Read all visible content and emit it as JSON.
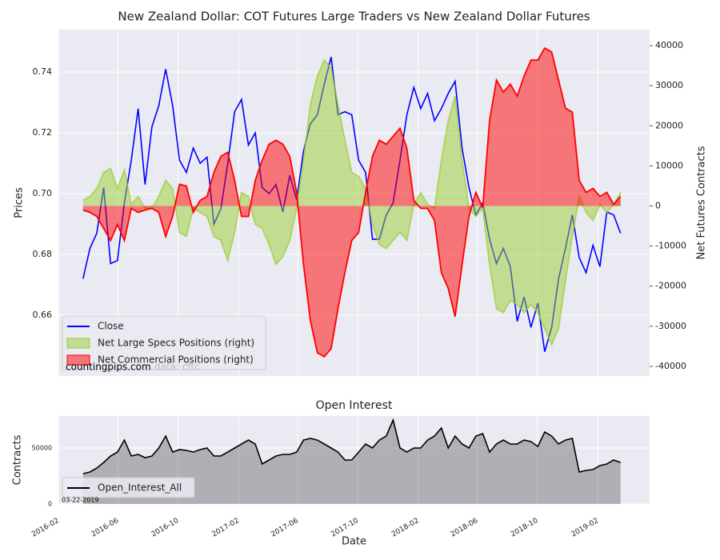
{
  "chart_data": [
    {
      "type": "line",
      "title": "New Zealand Dollar: COT Futures Large Traders vs New Zealand Dollar Futures",
      "ylabel": "Prices",
      "y2label": "Net Futures Contracts",
      "watermark": "countingpips.com",
      "source_note": "data: cftc",
      "legend": "lower left",
      "grid": true,
      "x": [
        "2016-03-22",
        "2016-04-05",
        "2016-04-19",
        "2016-05-03",
        "2016-05-17",
        "2016-05-31",
        "2016-06-14",
        "2016-06-28",
        "2016-07-12",
        "2016-07-26",
        "2016-08-09",
        "2016-08-23",
        "2016-09-06",
        "2016-09-20",
        "2016-10-04",
        "2016-10-18",
        "2016-11-01",
        "2016-11-15",
        "2016-11-29",
        "2016-12-13",
        "2016-12-27",
        "2017-01-10",
        "2017-01-24",
        "2017-02-07",
        "2017-02-21",
        "2017-03-07",
        "2017-03-21",
        "2017-04-04",
        "2017-04-18",
        "2017-05-02",
        "2017-05-16",
        "2017-05-30",
        "2017-06-13",
        "2017-06-27",
        "2017-07-11",
        "2017-07-25",
        "2017-08-08",
        "2017-08-22",
        "2017-09-05",
        "2017-09-19",
        "2017-10-03",
        "2017-10-17",
        "2017-10-31",
        "2017-11-14",
        "2017-11-28",
        "2017-12-12",
        "2017-12-26",
        "2018-01-09",
        "2018-01-23",
        "2018-02-06",
        "2018-02-20",
        "2018-03-06",
        "2018-03-20",
        "2018-04-03",
        "2018-04-17",
        "2018-05-01",
        "2018-05-15",
        "2018-05-29",
        "2018-06-12",
        "2018-06-26",
        "2018-07-10",
        "2018-07-24",
        "2018-08-07",
        "2018-08-21",
        "2018-09-04",
        "2018-09-18",
        "2018-10-02",
        "2018-10-16",
        "2018-10-30",
        "2018-11-13",
        "2018-11-27",
        "2018-12-11",
        "2018-12-25",
        "2019-01-08",
        "2019-01-22",
        "2019-02-05",
        "2019-02-19",
        "2019-03-05",
        "2019-03-19"
      ],
      "xlim": [
        "2016-02-01",
        "2019-05-17"
      ],
      "xticks": [
        "2016-02-01",
        "2016-06-01",
        "2016-10-01",
        "2017-02-01",
        "2017-06-01",
        "2017-10-01",
        "2018-02-01",
        "2018-06-01",
        "2018-10-01",
        "2019-02-01"
      ],
      "ylim": [
        0.64,
        0.754
      ],
      "yticks": [
        0.66,
        0.68,
        {
          "value": 0.7,
          "label": "0.70"
        },
        0.72,
        0.74
      ],
      "y2lim": [
        -42400,
        44000
      ],
      "y2ticks": [
        -40000,
        -30000,
        -20000,
        -10000,
        0,
        10000,
        20000,
        30000,
        40000
      ],
      "series": [
        {
          "name": "Close",
          "color": "#0000ff",
          "kind": "line",
          "values": [
            0.672,
            0.682,
            0.687,
            0.702,
            0.677,
            0.678,
            0.697,
            0.711,
            0.728,
            0.703,
            0.722,
            0.729,
            0.741,
            0.729,
            0.711,
            0.707,
            0.715,
            0.71,
            0.712,
            0.69,
            0.695,
            0.71,
            0.727,
            0.731,
            0.716,
            0.72,
            0.702,
            0.7,
            0.703,
            0.694,
            0.706,
            0.698,
            0.714,
            0.723,
            0.726,
            0.736,
            0.745,
            0.726,
            0.727,
            0.726,
            0.711,
            0.707,
            0.685,
            0.685,
            0.693,
            0.697,
            0.711,
            0.726,
            0.735,
            0.728,
            0.733,
            0.724,
            0.728,
            0.733,
            0.737,
            0.715,
            0.702,
            0.693,
            0.697,
            0.685,
            0.677,
            0.682,
            0.676,
            0.658,
            0.666,
            0.656,
            0.664,
            0.648,
            0.656,
            0.672,
            0.682,
            0.693,
            0.679,
            0.674,
            0.683,
            0.676,
            0.694,
            0.693,
            0.687
          ]
        },
        {
          "name": "Net Large Specs Positions (right)",
          "color": "#9acd32",
          "kind": "area",
          "axis": "y2",
          "values": [
            1400,
            2400,
            4400,
            8400,
            9400,
            4400,
            9000,
            400,
            2400,
            -600,
            -600,
            2400,
            6400,
            4400,
            -6600,
            -7600,
            -600,
            -1600,
            -2600,
            -7600,
            -8600,
            -13600,
            -6600,
            3400,
            2400,
            -4600,
            -5600,
            -9600,
            -14600,
            -12600,
            -8600,
            -600,
            11400,
            25400,
            32400,
            36400,
            34400,
            25400,
            16400,
            8400,
            7400,
            4400,
            -4600,
            -9600,
            -10600,
            -8600,
            -6600,
            -8600,
            400,
            3400,
            400,
            -600,
            11400,
            21400,
            27400,
            11400,
            -600,
            -2600,
            -600,
            -14600,
            -25600,
            -26600,
            -23600,
            -24600,
            -26600,
            -24600,
            -26600,
            -30600,
            -34600,
            -30600,
            -18600,
            -7600,
            2400,
            -1600,
            -3600,
            400,
            -1600,
            400,
            3400
          ]
        },
        {
          "name": "Net Commercial Positions (right)",
          "color": "#ff0000",
          "kind": "area",
          "axis": "y2",
          "values": [
            -1000,
            -1600,
            -2600,
            -5600,
            -8600,
            -4600,
            -8600,
            -600,
            -1600,
            -1000,
            -600,
            -1600,
            -7600,
            -2600,
            5400,
            5000,
            -1600,
            1400,
            2400,
            8400,
            12400,
            13400,
            6400,
            -2600,
            -2600,
            6400,
            11400,
            15400,
            16400,
            15400,
            12400,
            3400,
            -14600,
            -28600,
            -36600,
            -37600,
            -35600,
            -25600,
            -16600,
            -8600,
            -6600,
            3400,
            12400,
            16400,
            15400,
            17400,
            19400,
            14400,
            1400,
            -600,
            -600,
            -3600,
            -16600,
            -20600,
            -27600,
            -14600,
            -2600,
            3400,
            -400,
            21400,
            31400,
            28400,
            30400,
            27400,
            32400,
            36400,
            36400,
            39400,
            38400,
            31400,
            24400,
            23400,
            6400,
            3400,
            4400,
            2400,
            3400,
            400,
            2400
          ]
        }
      ]
    },
    {
      "type": "area",
      "title": "Open Interest",
      "ylabel": "Contracts",
      "xlabel": "Date",
      "date_note": "03-22-2019",
      "legend": "lower left",
      "grid": true,
      "x": [
        "2016-03-22",
        "2016-04-05",
        "2016-04-19",
        "2016-05-03",
        "2016-05-17",
        "2016-05-31",
        "2016-06-14",
        "2016-06-28",
        "2016-07-12",
        "2016-07-26",
        "2016-08-09",
        "2016-08-23",
        "2016-09-06",
        "2016-09-20",
        "2016-10-04",
        "2016-10-18",
        "2016-11-01",
        "2016-11-15",
        "2016-11-29",
        "2016-12-13",
        "2016-12-27",
        "2017-01-10",
        "2017-01-24",
        "2017-02-07",
        "2017-02-21",
        "2017-03-07",
        "2017-03-21",
        "2017-04-04",
        "2017-04-18",
        "2017-05-02",
        "2017-05-16",
        "2017-05-30",
        "2017-06-13",
        "2017-06-27",
        "2017-07-11",
        "2017-07-25",
        "2017-08-08",
        "2017-08-22",
        "2017-09-05",
        "2017-09-19",
        "2017-10-03",
        "2017-10-17",
        "2017-10-31",
        "2017-11-14",
        "2017-11-28",
        "2017-12-12",
        "2017-12-26",
        "2018-01-09",
        "2018-01-23",
        "2018-02-06",
        "2018-02-20",
        "2018-03-06",
        "2018-03-20",
        "2018-04-03",
        "2018-04-17",
        "2018-05-01",
        "2018-05-15",
        "2018-05-29",
        "2018-06-12",
        "2018-06-26",
        "2018-07-10",
        "2018-07-24",
        "2018-08-07",
        "2018-08-21",
        "2018-09-04",
        "2018-09-18",
        "2018-10-02",
        "2018-10-16",
        "2018-10-30",
        "2018-11-13",
        "2018-11-27",
        "2018-12-11",
        "2018-12-25",
        "2019-01-08",
        "2019-01-22",
        "2019-02-05",
        "2019-02-19",
        "2019-03-05",
        "2019-03-19"
      ],
      "xlim": [
        "2016-02-01",
        "2019-05-17"
      ],
      "xticks": [
        {
          "value": "2016-02-01",
          "label": "2016-02"
        },
        {
          "value": "2016-06-01",
          "label": "2016-06"
        },
        {
          "value": "2016-10-01",
          "label": "2016-10"
        },
        {
          "value": "2017-02-01",
          "label": "2017-02"
        },
        {
          "value": "2017-06-01",
          "label": "2017-06"
        },
        {
          "value": "2017-10-01",
          "label": "2017-10"
        },
        {
          "value": "2018-02-01",
          "label": "2018-02"
        },
        {
          "value": "2018-06-01",
          "label": "2018-06"
        },
        {
          "value": "2018-10-01",
          "label": "2018-10"
        },
        {
          "value": "2019-02-01",
          "label": "2019-02"
        }
      ],
      "ylim": [
        0,
        78600
      ],
      "yticks": [
        0,
        50000
      ],
      "series": [
        {
          "name": "Open_Interest_All",
          "color": "#000000",
          "kind": "area",
          "values": [
            27100,
            28600,
            32100,
            37100,
            42900,
            46400,
            57100,
            42900,
            44300,
            41400,
            42900,
            50000,
            60700,
            46400,
            48600,
            47900,
            46400,
            48600,
            50000,
            42900,
            42900,
            46400,
            50000,
            53600,
            57100,
            53600,
            35700,
            39300,
            42900,
            44300,
            44300,
            46400,
            57100,
            58600,
            57100,
            53600,
            50000,
            46400,
            39300,
            39300,
            46400,
            53600,
            50000,
            57100,
            60700,
            75000,
            50000,
            46400,
            50000,
            50000,
            57100,
            60700,
            67900,
            50000,
            60700,
            53600,
            50000,
            60700,
            62900,
            46400,
            53600,
            57100,
            53600,
            53600,
            57100,
            55700,
            51400,
            64300,
            60700,
            53600,
            57100,
            58600,
            28600,
            30000,
            30700,
            34300,
            35700,
            39300,
            37100
          ]
        }
      ]
    }
  ]
}
